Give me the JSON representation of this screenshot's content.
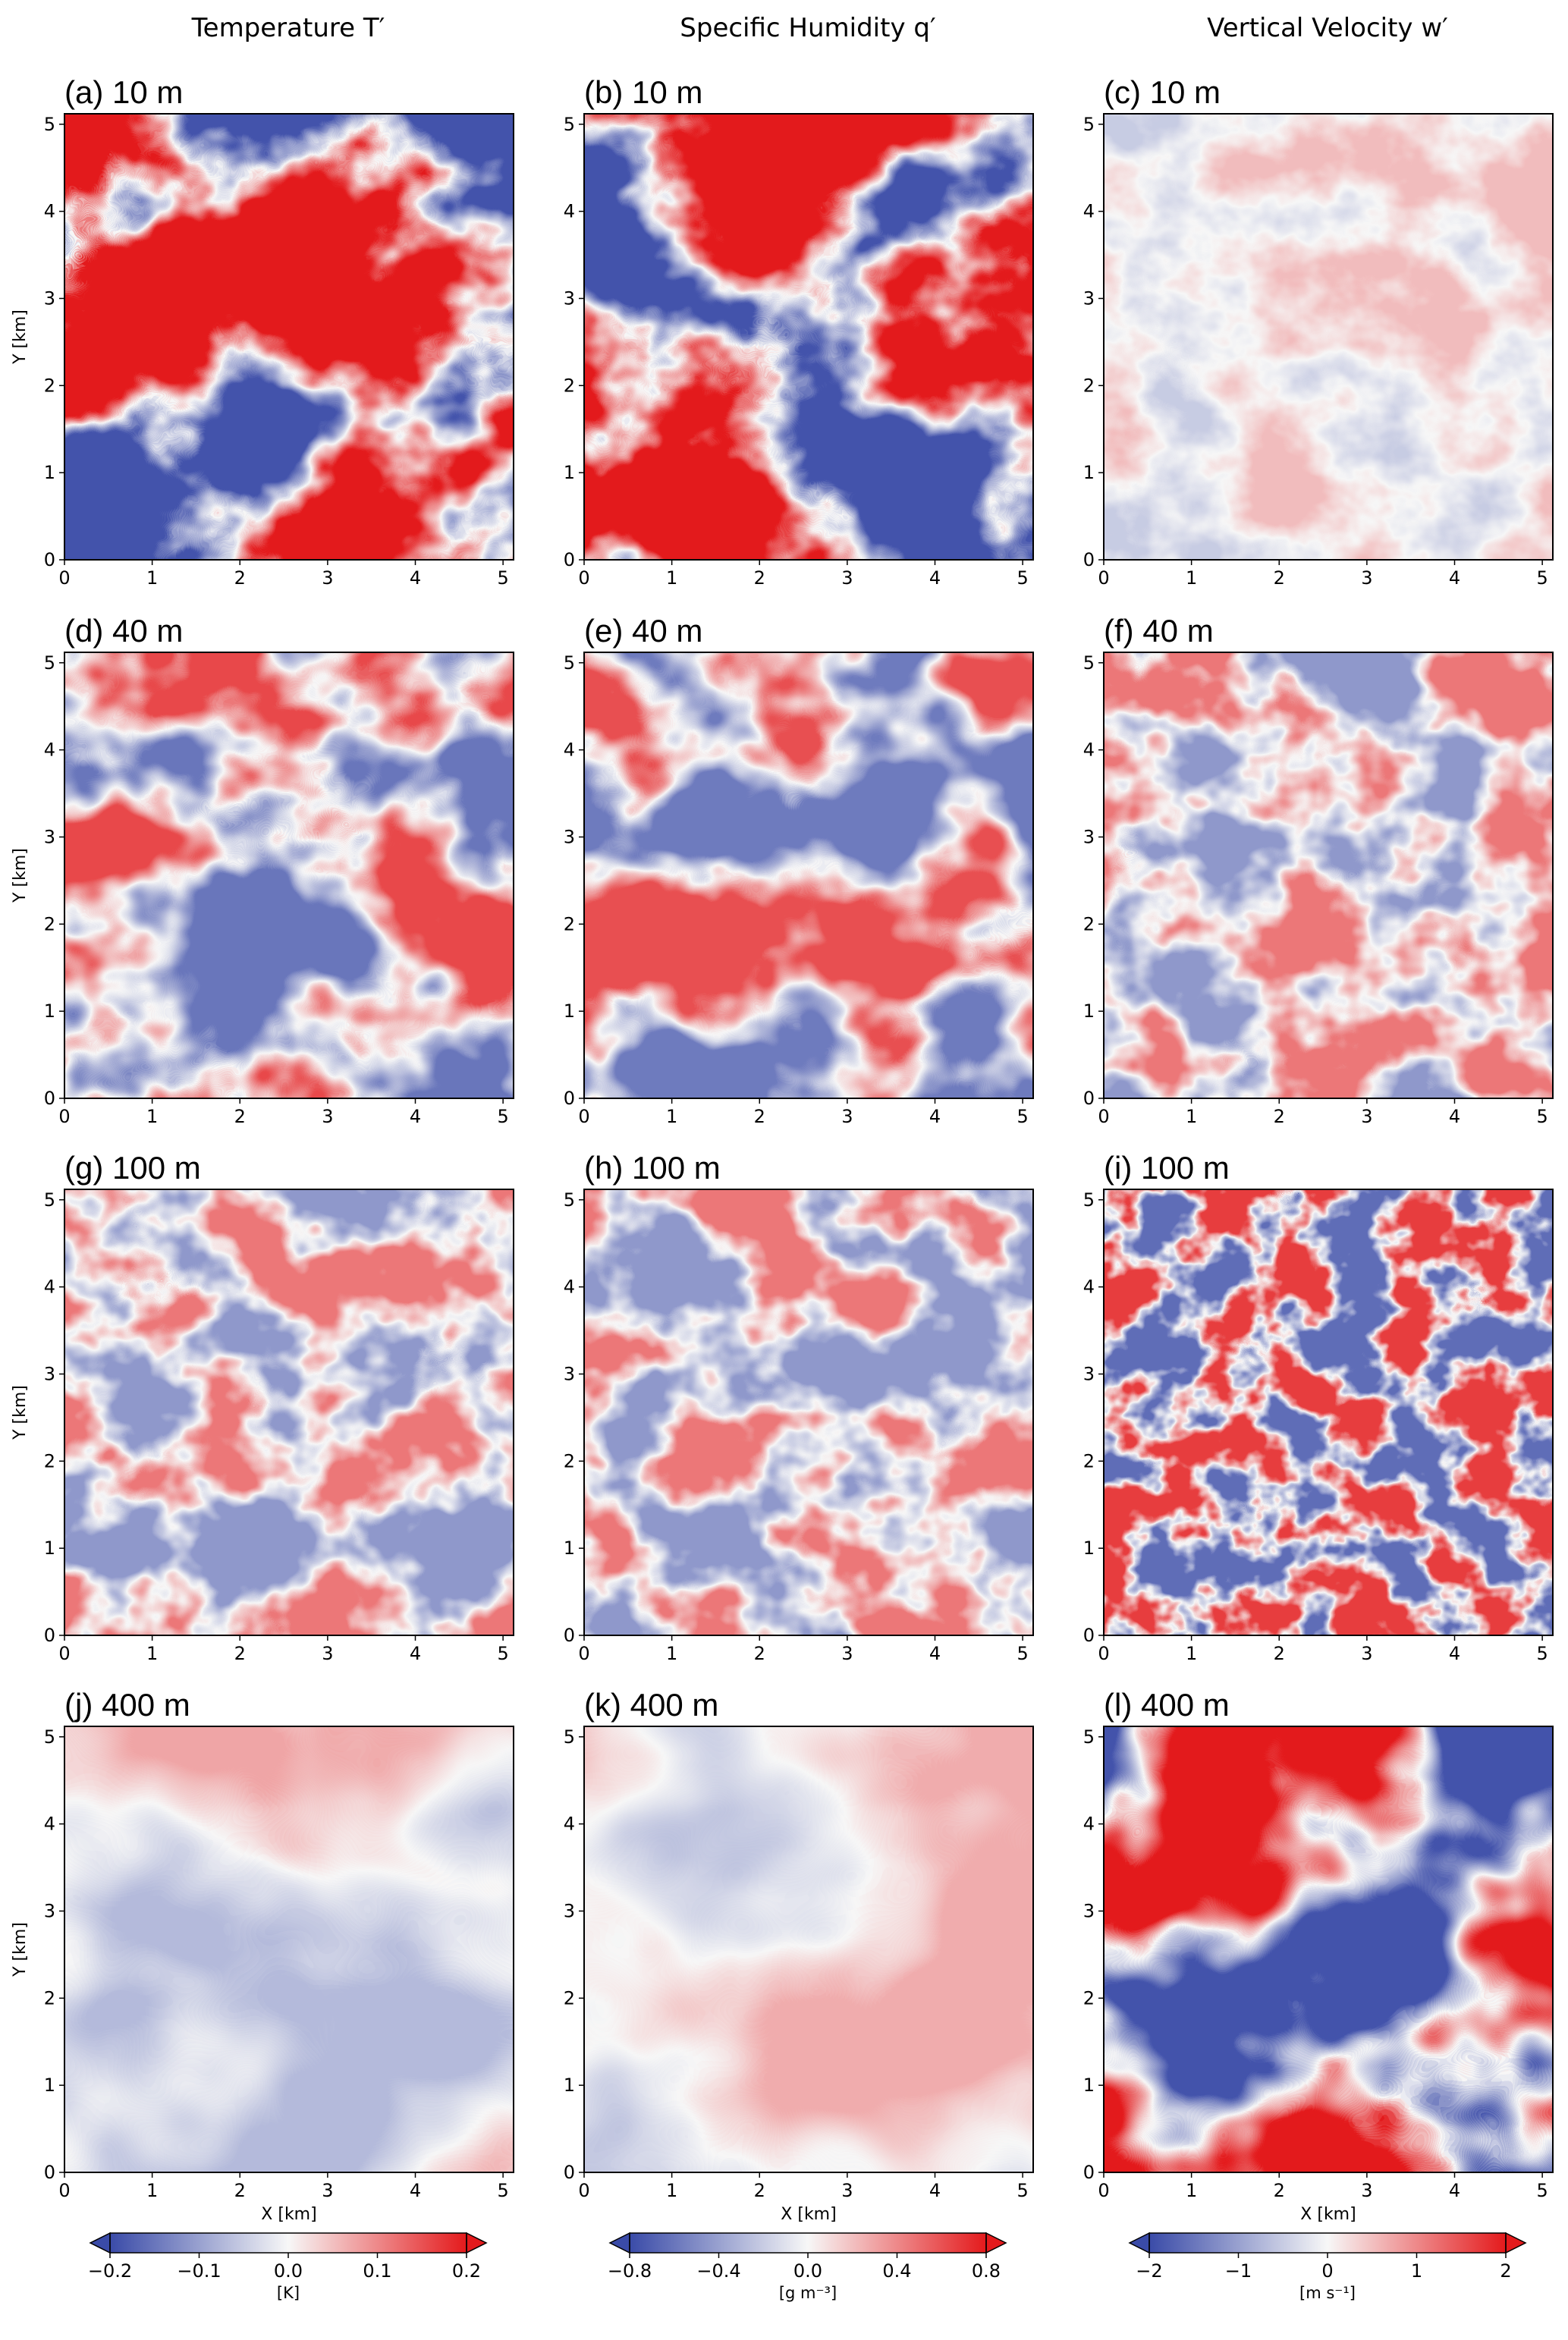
{
  "columns": [
    {
      "id": "T",
      "title": "Temperature T′",
      "colorbar": {
        "ticks": [
          "−0.2",
          "−0.1",
          "0.0",
          "0.1",
          "0.2"
        ],
        "unit": "[K]",
        "range": [
          -0.2,
          0.2
        ],
        "extend": "both"
      }
    },
    {
      "id": "q",
      "title": "Specific Humidity q′",
      "colorbar": {
        "ticks": [
          "−0.8",
          "−0.4",
          "0.0",
          "0.4",
          "0.8"
        ],
        "unit": "[g m⁻³]",
        "range": [
          -0.8,
          0.8
        ],
        "extend": "both"
      }
    },
    {
      "id": "w",
      "title": "Vertical Velocity w′",
      "colorbar": {
        "ticks": [
          "−2",
          "−1",
          "0",
          "1",
          "2"
        ],
        "unit": "[m s⁻¹]",
        "range": [
          -2,
          2
        ],
        "extend": "both"
      }
    }
  ],
  "panels": [
    {
      "label": "(a) 10 m"
    },
    {
      "label": "(b) 10 m"
    },
    {
      "label": "(c) 10 m"
    },
    {
      "label": "(d) 40 m"
    },
    {
      "label": "(e) 40 m"
    },
    {
      "label": "(f) 40 m"
    },
    {
      "label": "(g) 100 m"
    },
    {
      "label": "(h) 100 m"
    },
    {
      "label": "(i) 100 m"
    },
    {
      "label": "(j) 400 m"
    },
    {
      "label": "(k) 400 m"
    },
    {
      "label": "(l) 400 m"
    }
  ],
  "axes": {
    "xlabel": "X [km]",
    "ylabel": "Y [km]",
    "ticks": [
      "0",
      "1",
      "2",
      "3",
      "4",
      "5"
    ],
    "x_range_km": [
      0,
      5.12
    ],
    "y_range_km": [
      0,
      5.12
    ]
  },
  "colormap": {
    "negative": "#3a4ba8",
    "zero": "#f7f7f7",
    "positive": "#e41a1c"
  },
  "icons": {
    "colorbar_extend": "triangle-arrow"
  }
}
